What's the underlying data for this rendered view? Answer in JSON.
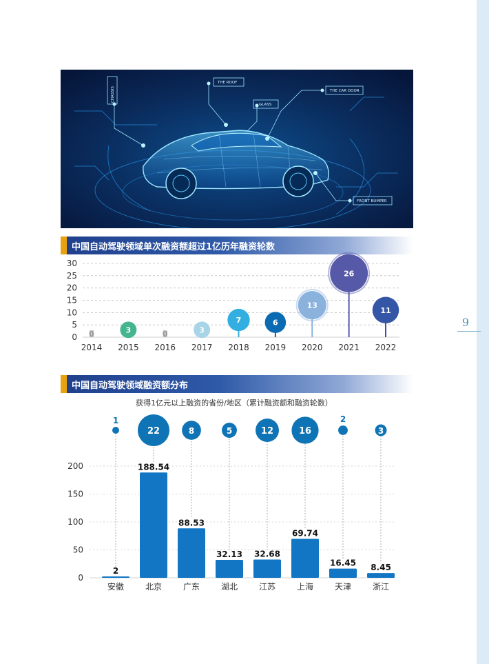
{
  "page": {
    "number": "9"
  },
  "hero": {
    "labels": [
      "CHASSIS",
      "THE ROOF",
      "GLASS",
      "THE CAR DOOR",
      "FRONT BUMPER"
    ]
  },
  "section1": {
    "title": "中国自动驾驶领域单次融资额超过1亿历年融资轮数"
  },
  "section2": {
    "title": "中国自动驾驶领域融资额分布"
  },
  "chart_data": [
    {
      "type": "bar",
      "title": "",
      "categories": [
        "2014",
        "2015",
        "2016",
        "2017",
        "2018",
        "2019",
        "2020",
        "2021",
        "2022"
      ],
      "values": [
        0,
        3,
        0,
        3,
        7,
        6,
        13,
        26,
        11
      ],
      "value_labels": [
        "0",
        "3",
        "0",
        "3",
        "7",
        "6",
        "13",
        "26",
        "11"
      ],
      "y_ticks": [
        "30",
        "25",
        "20",
        "15",
        "10",
        "5",
        "0"
      ],
      "ylim": [
        0,
        30
      ],
      "grid": true,
      "colors": [
        "#a0a0a0",
        "#45b58f",
        "#a0a0a0",
        "#a7d4e6",
        "#32aee0",
        "#0a6ab2",
        "#8ab2dd",
        "#5658a8",
        "#3556a6"
      ]
    },
    {
      "type": "bar",
      "title": "获得1亿元以上融资的省份/地区（累计融资额和融资轮数）",
      "categories": [
        "安徽",
        "北京",
        "广东",
        "湖北",
        "江苏",
        "上海",
        "天津",
        "浙江"
      ],
      "values": [
        2,
        188.54,
        88.53,
        32.13,
        32.68,
        69.74,
        16.45,
        8.45
      ],
      "value_labels": [
        "2",
        "188.54",
        "88.53",
        "32.13",
        "32.68",
        "69.74",
        "16.45",
        "8.45"
      ],
      "rounds": [
        1,
        22,
        8,
        5,
        12,
        16,
        2,
        3
      ],
      "round_labels": [
        "1",
        "22",
        "8",
        "5",
        "12",
        "16",
        "2",
        "3"
      ],
      "y_ticks": [
        "200",
        "150",
        "100",
        "50",
        "0"
      ],
      "ylim": [
        0,
        200
      ],
      "grid": true,
      "bar_color": "#1276c4",
      "bubble_color": "#0f74b5"
    }
  ]
}
